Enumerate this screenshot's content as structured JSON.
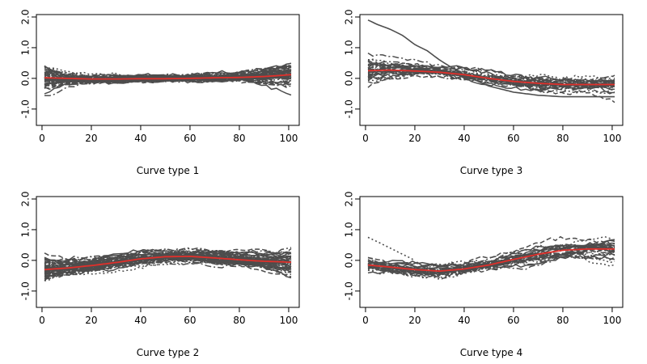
{
  "chart_data": [
    {
      "type": "line",
      "title": "Curve type 1",
      "xlim": [
        1,
        101
      ],
      "ylim": [
        -1.4,
        2.0
      ],
      "xticks": [
        0,
        20,
        40,
        60,
        80,
        100
      ],
      "yticks": [
        -1.0,
        0.0,
        1.0,
        2.0
      ],
      "ytick_labels": [
        "-1.0",
        "0.0",
        "1.0",
        "2.0"
      ],
      "grid": false,
      "curve_color": "#4d4d4d",
      "mean_color": "#e0302b",
      "curve_count": 55,
      "noise": 0.05,
      "mean": {
        "x": [
          1,
          10,
          20,
          30,
          40,
          50,
          60,
          70,
          80,
          90,
          101
        ],
        "y": [
          0.02,
          0.0,
          -0.02,
          -0.02,
          -0.01,
          -0.01,
          0.0,
          0.02,
          0.03,
          0.06,
          0.12
        ]
      },
      "band_half_width": {
        "x": [
          1,
          10,
          20,
          40,
          60,
          80,
          90,
          101
        ],
        "y": [
          0.6,
          0.3,
          0.18,
          0.15,
          0.15,
          0.2,
          0.35,
          0.6
        ]
      },
      "outliers": []
    },
    {
      "type": "line",
      "title": "Curve type 2",
      "xlim": [
        1,
        101
      ],
      "ylim": [
        -1.4,
        2.0
      ],
      "xticks": [
        0,
        20,
        40,
        60,
        80,
        100
      ],
      "yticks": [
        -1.0,
        0.0,
        1.0,
        2.0
      ],
      "ytick_labels": [
        "-1.0",
        "0.0",
        "1.0",
        "2.0"
      ],
      "grid": false,
      "curve_color": "#4d4d4d",
      "mean_color": "#e0302b",
      "curve_count": 55,
      "noise": 0.05,
      "mean": {
        "x": [
          1,
          10,
          20,
          30,
          40,
          50,
          60,
          70,
          80,
          90,
          101
        ],
        "y": [
          -0.3,
          -0.25,
          -0.17,
          -0.07,
          0.05,
          0.12,
          0.13,
          0.08,
          0.02,
          -0.03,
          -0.06
        ]
      },
      "band_half_width": {
        "x": [
          1,
          10,
          20,
          40,
          60,
          80,
          90,
          101
        ],
        "y": [
          0.5,
          0.35,
          0.3,
          0.3,
          0.3,
          0.3,
          0.4,
          0.6
        ]
      },
      "outliers": []
    },
    {
      "type": "line",
      "title": "Curve type 3",
      "xlim": [
        1,
        101
      ],
      "ylim": [
        -1.4,
        2.0
      ],
      "xticks": [
        0,
        20,
        40,
        60,
        80,
        100
      ],
      "yticks": [
        -1.0,
        0.0,
        1.0,
        2.0
      ],
      "ytick_labels": [
        "-1.0",
        "0.0",
        "1.0",
        "2.0"
      ],
      "grid": false,
      "curve_color": "#4d4d4d",
      "mean_color": "#e0302b",
      "curve_count": 30,
      "noise": 0.06,
      "mean": {
        "x": [
          1,
          10,
          20,
          30,
          40,
          50,
          60,
          70,
          80,
          90,
          101
        ],
        "y": [
          0.25,
          0.27,
          0.24,
          0.2,
          0.12,
          0.0,
          -0.1,
          -0.16,
          -0.2,
          -0.2,
          -0.2
        ]
      },
      "band_half_width": {
        "x": [
          1,
          10,
          20,
          40,
          60,
          80,
          90,
          101
        ],
        "y": [
          0.6,
          0.45,
          0.35,
          0.3,
          0.3,
          0.3,
          0.35,
          0.55
        ]
      },
      "outliers": [
        {
          "x": [
            1,
            5,
            10,
            15,
            20,
            25,
            30,
            35,
            40,
            50,
            60,
            70,
            80,
            90,
            101
          ],
          "y": [
            1.9,
            1.75,
            1.6,
            1.4,
            1.1,
            0.9,
            0.6,
            0.35,
            0.1,
            -0.25,
            -0.45,
            -0.55,
            -0.6,
            -0.6,
            -0.6
          ],
          "dash": ""
        }
      ]
    },
    {
      "type": "line",
      "title": "Curve type 4",
      "xlim": [
        1,
        101
      ],
      "ylim": [
        -1.4,
        2.0
      ],
      "xticks": [
        0,
        20,
        40,
        60,
        80,
        100
      ],
      "yticks": [
        -1.0,
        0.0,
        1.0,
        2.0
      ],
      "ytick_labels": [
        "-1.0",
        "0.0",
        "1.0",
        "2.0"
      ],
      "grid": false,
      "curve_color": "#4d4d4d",
      "mean_color": "#e0302b",
      "curve_count": 30,
      "noise": 0.06,
      "mean": {
        "x": [
          1,
          10,
          20,
          30,
          40,
          50,
          60,
          70,
          80,
          90,
          101
        ],
        "y": [
          -0.15,
          -0.22,
          -0.3,
          -0.35,
          -0.28,
          -0.15,
          0.03,
          0.2,
          0.33,
          0.37,
          0.37
        ]
      },
      "band_half_width": {
        "x": [
          1,
          10,
          20,
          40,
          60,
          80,
          90,
          101
        ],
        "y": [
          0.45,
          0.35,
          0.3,
          0.3,
          0.35,
          0.45,
          0.55,
          0.6
        ]
      },
      "outliers": [
        {
          "x": [
            1,
            5,
            10,
            15,
            20
          ],
          "y": [
            0.75,
            0.6,
            0.4,
            0.2,
            0.0
          ],
          "dash": "2 3"
        }
      ]
    }
  ]
}
